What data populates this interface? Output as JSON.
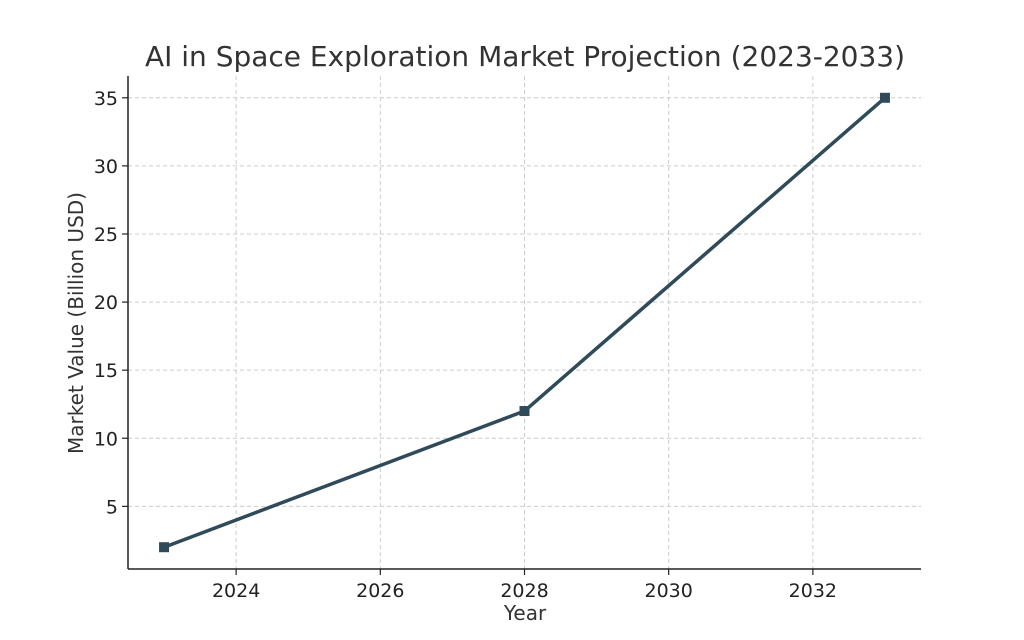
{
  "chart_data": {
    "type": "line",
    "title": "AI in Space Exploration Market Projection (2023-2033)",
    "xlabel": "Year",
    "ylabel": "Market Value (Billion USD)",
    "x": [
      2023,
      2028,
      2033
    ],
    "series": [
      {
        "values": [
          2,
          12,
          35
        ],
        "color": "#2f4b5a",
        "marker": "square"
      }
    ],
    "xlim": [
      2022.5,
      2033.5
    ],
    "ylim": [
      0.4,
      36.6
    ],
    "xticks": [
      2024,
      2026,
      2028,
      2030,
      2032
    ],
    "yticks": [
      5,
      10,
      15,
      20,
      25,
      30,
      35
    ],
    "grid": true,
    "grid_style": "dashed",
    "legend": "none"
  }
}
